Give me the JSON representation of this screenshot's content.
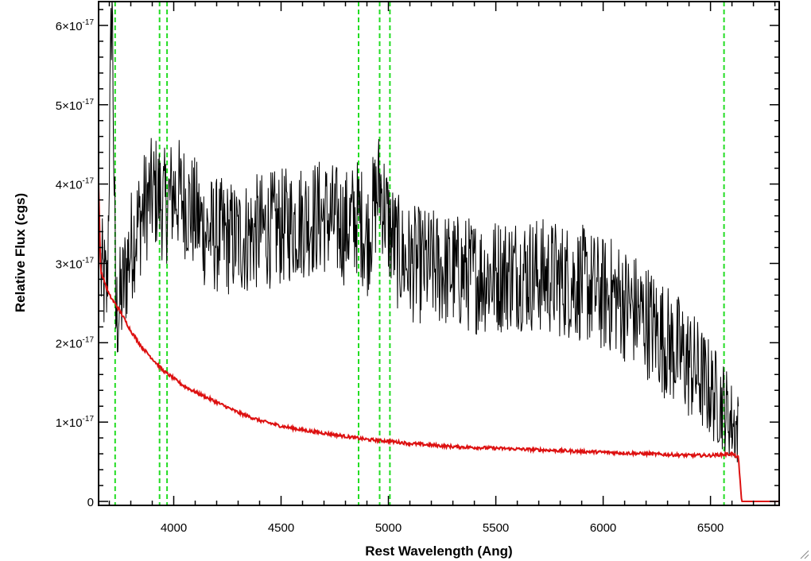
{
  "chart_data": {
    "type": "line",
    "title": "",
    "xlabel": "Rest Wavelength (Ang)",
    "ylabel": "Relative Flux (cgs)",
    "xlim": [
      3650,
      6820
    ],
    "ylim": [
      -5e-19,
      6.3e-17
    ],
    "x_ticks": [
      {
        "value": 4000,
        "label": "4000"
      },
      {
        "value": 4500,
        "label": "4500"
      },
      {
        "value": 5000,
        "label": "5000"
      },
      {
        "value": 5500,
        "label": "5500"
      },
      {
        "value": 6000,
        "label": "6000"
      },
      {
        "value": 6500,
        "label": "6500"
      }
    ],
    "y_ticks": [
      {
        "value": 0,
        "mant": "0",
        "exp": ""
      },
      {
        "value": 1e-17,
        "mant": "1×10",
        "exp": "-17"
      },
      {
        "value": 2e-17,
        "mant": "2×10",
        "exp": "-17"
      },
      {
        "value": 3e-17,
        "mant": "3×10",
        "exp": "-17"
      },
      {
        "value": 4e-17,
        "mant": "4×10",
        "exp": "-17"
      },
      {
        "value": 5e-17,
        "mant": "5×10",
        "exp": "-17"
      },
      {
        "value": 6e-17,
        "mant": "6×10",
        "exp": "-17"
      }
    ],
    "vertical_markers": [
      3727,
      3934,
      3969,
      4861,
      4959,
      5007,
      6563
    ],
    "series": [
      {
        "color": "#000000",
        "points": [
          [
            3660,
            2.9e-17
          ],
          [
            3690,
            2.6e-17
          ],
          [
            3712,
            6.5e-17
          ],
          [
            3730,
            2.3e-17
          ],
          [
            3760,
            2.6e-17
          ],
          [
            3790,
            3.1e-17
          ],
          [
            3820,
            3.4e-17
          ],
          [
            3850,
            3.6e-17
          ],
          [
            3880,
            3.8e-17
          ],
          [
            3920,
            3.9e-17
          ],
          [
            3960,
            3.7e-17
          ],
          [
            4000,
            3.9e-17
          ],
          [
            4050,
            3.8e-17
          ],
          [
            4100,
            3.6e-17
          ],
          [
            4150,
            3.4e-17
          ],
          [
            4200,
            3.35e-17
          ],
          [
            4300,
            3.3e-17
          ],
          [
            4400,
            3.4e-17
          ],
          [
            4500,
            3.45e-17
          ],
          [
            4600,
            3.55e-17
          ],
          [
            4700,
            3.6e-17
          ],
          [
            4800,
            3.45e-17
          ],
          [
            4861,
            3.6e-17
          ],
          [
            4900,
            3.3e-17
          ],
          [
            4959,
            4e-17
          ],
          [
            5007,
            3.4e-17
          ],
          [
            5050,
            3.1e-17
          ],
          [
            5100,
            3e-17
          ],
          [
            5200,
            2.95e-17
          ],
          [
            5300,
            2.9e-17
          ],
          [
            5400,
            2.85e-17
          ],
          [
            5500,
            2.85e-17
          ],
          [
            5600,
            2.9e-17
          ],
          [
            5700,
            2.85e-17
          ],
          [
            5800,
            2.8e-17
          ],
          [
            5900,
            2.75e-17
          ],
          [
            6000,
            2.6e-17
          ],
          [
            6050,
            2.6e-17
          ],
          [
            6100,
            2.5e-17
          ],
          [
            6200,
            2.3e-17
          ],
          [
            6300,
            2e-17
          ],
          [
            6400,
            1.75e-17
          ],
          [
            6500,
            1.4e-17
          ],
          [
            6563,
            1.2e-17
          ],
          [
            6600,
            1e-17
          ],
          [
            6630,
            9e-18
          ]
        ]
      },
      {
        "color": "#dd1111",
        "points": [
          [
            3650,
            4e-17
          ],
          [
            3660,
            2.9e-17
          ],
          [
            3700,
            2.6e-17
          ],
          [
            3750,
            2.4e-17
          ],
          [
            3800,
            2.15e-17
          ],
          [
            3850,
            1.95e-17
          ],
          [
            3900,
            1.8e-17
          ],
          [
            3950,
            1.65e-17
          ],
          [
            4000,
            1.55e-17
          ],
          [
            4050,
            1.45e-17
          ],
          [
            4100,
            1.38e-17
          ],
          [
            4200,
            1.25e-17
          ],
          [
            4300,
            1.12e-17
          ],
          [
            4400,
            1.02e-17
          ],
          [
            4500,
            9.5e-18
          ],
          [
            4600,
            9e-18
          ],
          [
            4700,
            8.6e-18
          ],
          [
            4800,
            8.2e-18
          ],
          [
            4900,
            7.8e-18
          ],
          [
            5000,
            7.6e-18
          ],
          [
            5100,
            7.3e-18
          ],
          [
            5200,
            7.1e-18
          ],
          [
            5300,
            6.9e-18
          ],
          [
            5400,
            6.8e-18
          ],
          [
            5500,
            6.7e-18
          ],
          [
            5600,
            6.6e-18
          ],
          [
            5700,
            6.5e-18
          ],
          [
            5800,
            6.4e-18
          ],
          [
            5900,
            6.3e-18
          ],
          [
            6000,
            6.2e-18
          ],
          [
            6100,
            6.1e-18
          ],
          [
            6200,
            6e-18
          ],
          [
            6300,
            5.9e-18
          ],
          [
            6400,
            5.8e-18
          ],
          [
            6500,
            5.8e-18
          ],
          [
            6600,
            6e-18
          ],
          [
            6630,
            5.5e-18
          ],
          [
            6645,
            0.0
          ],
          [
            6820,
            0.0
          ]
        ]
      }
    ],
    "grid": false,
    "legend": "none"
  }
}
